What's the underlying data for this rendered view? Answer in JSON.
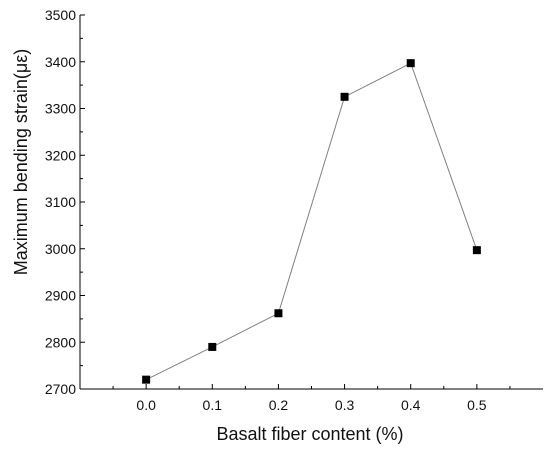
{
  "chart_data": {
    "type": "line",
    "xlabel": "Basalt fiber content (%)",
    "ylabel": "Maximum bending strain(με)",
    "x": [
      0.0,
      0.1,
      0.2,
      0.3,
      0.4,
      0.5
    ],
    "x_tick_labels": [
      "0.0",
      "0.1",
      "0.2",
      "0.3",
      "0.4",
      "0.5"
    ],
    "xlim": [
      -0.1,
      0.6
    ],
    "ylim": [
      2700,
      3500
    ],
    "y_ticks": [
      2700,
      2800,
      2900,
      3000,
      3100,
      3200,
      3300,
      3400,
      3500
    ],
    "y_tick_labels": [
      "2700",
      "2800",
      "2900",
      "3000",
      "3100",
      "3200",
      "3300",
      "3400",
      "3500"
    ],
    "series": [
      {
        "values": [
          2720,
          2790,
          2862,
          3325,
          3397,
          2997
        ],
        "marker": "square",
        "line_color": "#808080",
        "marker_color": "#000000"
      }
    ],
    "grid": false,
    "legend": "none"
  }
}
